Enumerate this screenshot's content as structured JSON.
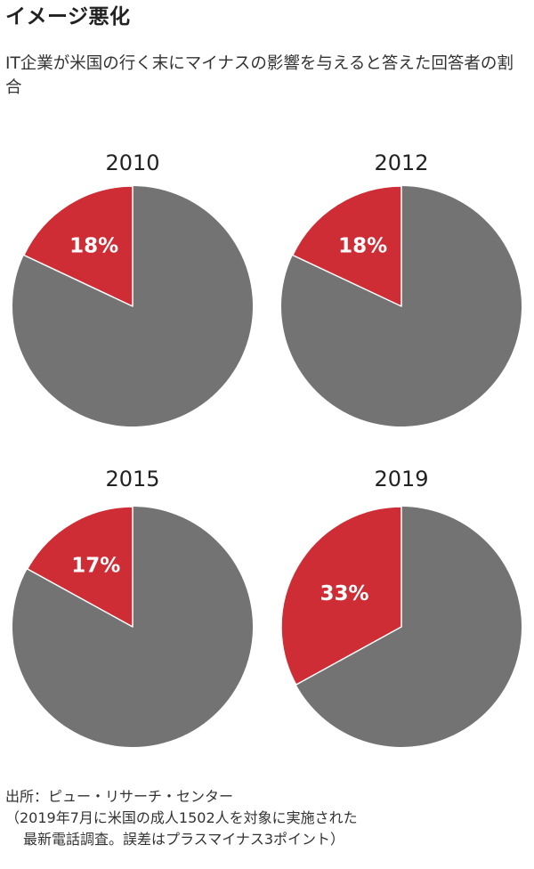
{
  "title": "イメージ悪化",
  "subtitle": "IT企業が米国の行く末にマイナスの影響を与えると答えた回答者の割合",
  "colors": {
    "highlight": "#cf2d35",
    "rest": "#737373",
    "label": "#ffffff"
  },
  "chart_data": [
    {
      "type": "pie",
      "title": "2010",
      "values": [
        18,
        82
      ],
      "labels": [
        "18%",
        ""
      ]
    },
    {
      "type": "pie",
      "title": "2012",
      "values": [
        18,
        82
      ],
      "labels": [
        "18%",
        ""
      ]
    },
    {
      "type": "pie",
      "title": "2015",
      "values": [
        17,
        83
      ],
      "labels": [
        "17%",
        ""
      ]
    },
    {
      "type": "pie",
      "title": "2019",
      "values": [
        33,
        67
      ],
      "labels": [
        "33%",
        ""
      ]
    }
  ],
  "source": {
    "line1": "出所：ピュー・リサーチ・センター",
    "line2": "（2019年7月に米国の成人1502人を対象に実施された",
    "line3": "最新電話調査。誤差はプラスマイナス3ポイント）"
  }
}
